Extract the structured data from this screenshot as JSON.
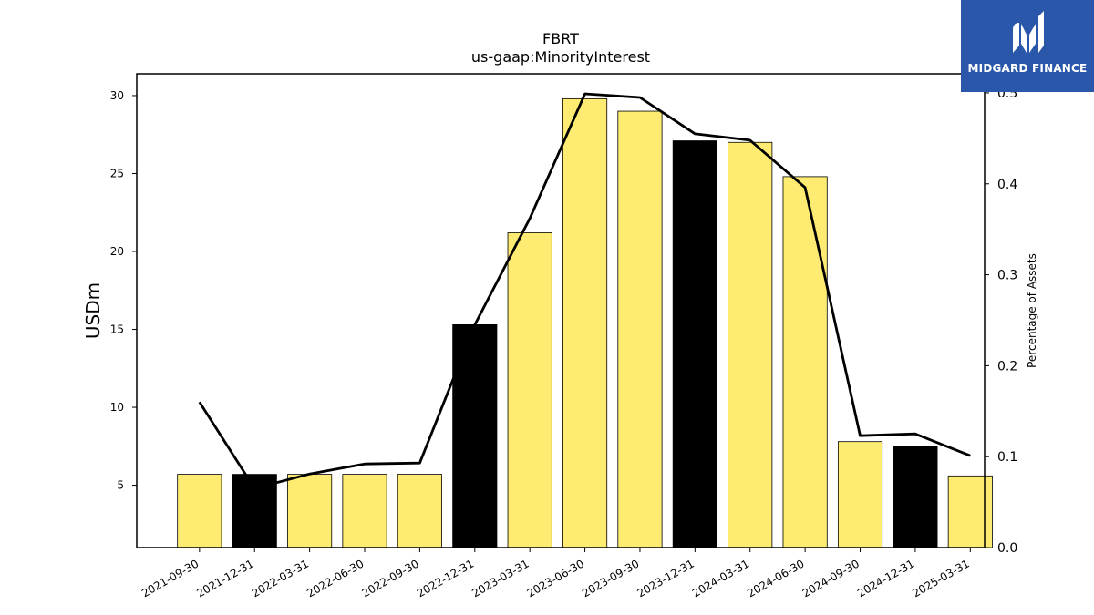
{
  "logo": {
    "text": "MIDGARD FINANCE",
    "icon": "midgard-logo-icon",
    "background": "#2a57a9"
  },
  "chart_data": {
    "type": "bar",
    "title": "FBRT",
    "subtitle": "us-gaap:MinorityInterest",
    "ylabel": "USDm",
    "y2label": "Percentage of Assets",
    "categories": [
      "2021-09-30",
      "2021-12-31",
      "2022-03-31",
      "2022-06-30",
      "2022-09-30",
      "2022-12-31",
      "2023-03-31",
      "2023-06-30",
      "2023-09-30",
      "2023-12-31",
      "2024-03-31",
      "2024-06-30",
      "2024-09-30",
      "2024-12-31",
      "2025-03-31"
    ],
    "series": [
      {
        "type": "bar",
        "values": [
          5.7,
          5.7,
          5.7,
          5.7,
          5.7,
          15.3,
          21.2,
          29.8,
          29.0,
          27.1,
          27.0,
          24.8,
          7.8,
          7.5,
          5.6
        ],
        "highlight": [
          false,
          true,
          false,
          false,
          false,
          true,
          false,
          false,
          false,
          true,
          false,
          false,
          false,
          true,
          false
        ]
      },
      {
        "type": "line",
        "axis": "right",
        "values": [
          0.16,
          0.065,
          0.081,
          0.092,
          0.093,
          0.245,
          0.362,
          0.499,
          0.495,
          0.455,
          0.448,
          0.396,
          0.123,
          0.125,
          0.101
        ]
      }
    ],
    "ylim": [
      1.0,
      31.4
    ],
    "yticks": [
      5,
      10,
      15,
      20,
      25,
      30
    ],
    "y2lim": [
      0.0,
      0.521
    ],
    "y2ticks": [
      "0.0",
      "0.1",
      "0.2",
      "0.3",
      "0.4",
      "0.5"
    ],
    "colors": {
      "bar": "#feeb72",
      "bar_highlight": "#000000",
      "line": "#000000"
    },
    "grid": false
  }
}
